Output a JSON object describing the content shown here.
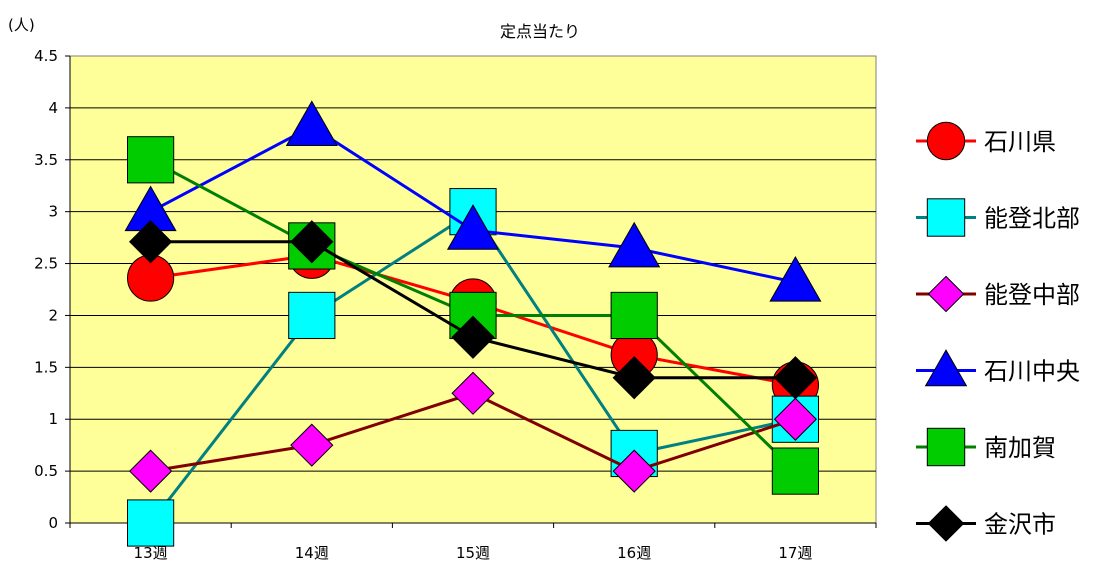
{
  "chart_data": {
    "type": "line",
    "title": "定点当たり",
    "ylabel": "(人)",
    "xlabel": "",
    "categories": [
      "13週",
      "14週",
      "15週",
      "16週",
      "17週"
    ],
    "ylim": [
      0,
      4.5
    ],
    "yticks": [
      0,
      0.5,
      1,
      1.5,
      2,
      2.5,
      3,
      3.5,
      4,
      4.5
    ],
    "ytick_labels": [
      "0",
      "0.5",
      "1",
      "1.5",
      "2",
      "2.5",
      "3",
      "3.5",
      "4",
      "4.5"
    ],
    "grid": true,
    "plot_background": "#FFFF99",
    "legend_position": "right",
    "series": [
      {
        "name": "石川県",
        "values": [
          2.36,
          2.58,
          2.13,
          1.62,
          1.33
        ],
        "line_color": "#FF0000",
        "marker": "circle",
        "marker_color": "#FF0000"
      },
      {
        "name": "能登北部",
        "values": [
          0.0,
          2.0,
          3.0,
          0.67,
          1.0
        ],
        "line_color": "#008080",
        "marker": "square",
        "marker_color": "#00FFFF"
      },
      {
        "name": "能登中部",
        "values": [
          0.5,
          0.75,
          1.25,
          0.5,
          1.0
        ],
        "line_color": "#800000",
        "marker": "diamond",
        "marker_color": "#FF00FF"
      },
      {
        "name": "石川中央",
        "values": [
          3.0,
          3.82,
          2.82,
          2.65,
          2.32
        ],
        "line_color": "#0000FF",
        "marker": "triangle",
        "marker_color": "#0000FF"
      },
      {
        "name": "南加賀",
        "values": [
          3.5,
          2.67,
          2.0,
          2.0,
          0.5
        ],
        "line_color": "#008000",
        "marker": "square",
        "marker_color": "#00CC00"
      },
      {
        "name": "金沢市",
        "values": [
          2.71,
          2.71,
          1.79,
          1.4,
          1.4
        ],
        "line_color": "#000000",
        "marker": "diamond",
        "marker_color": "#000000"
      }
    ]
  }
}
